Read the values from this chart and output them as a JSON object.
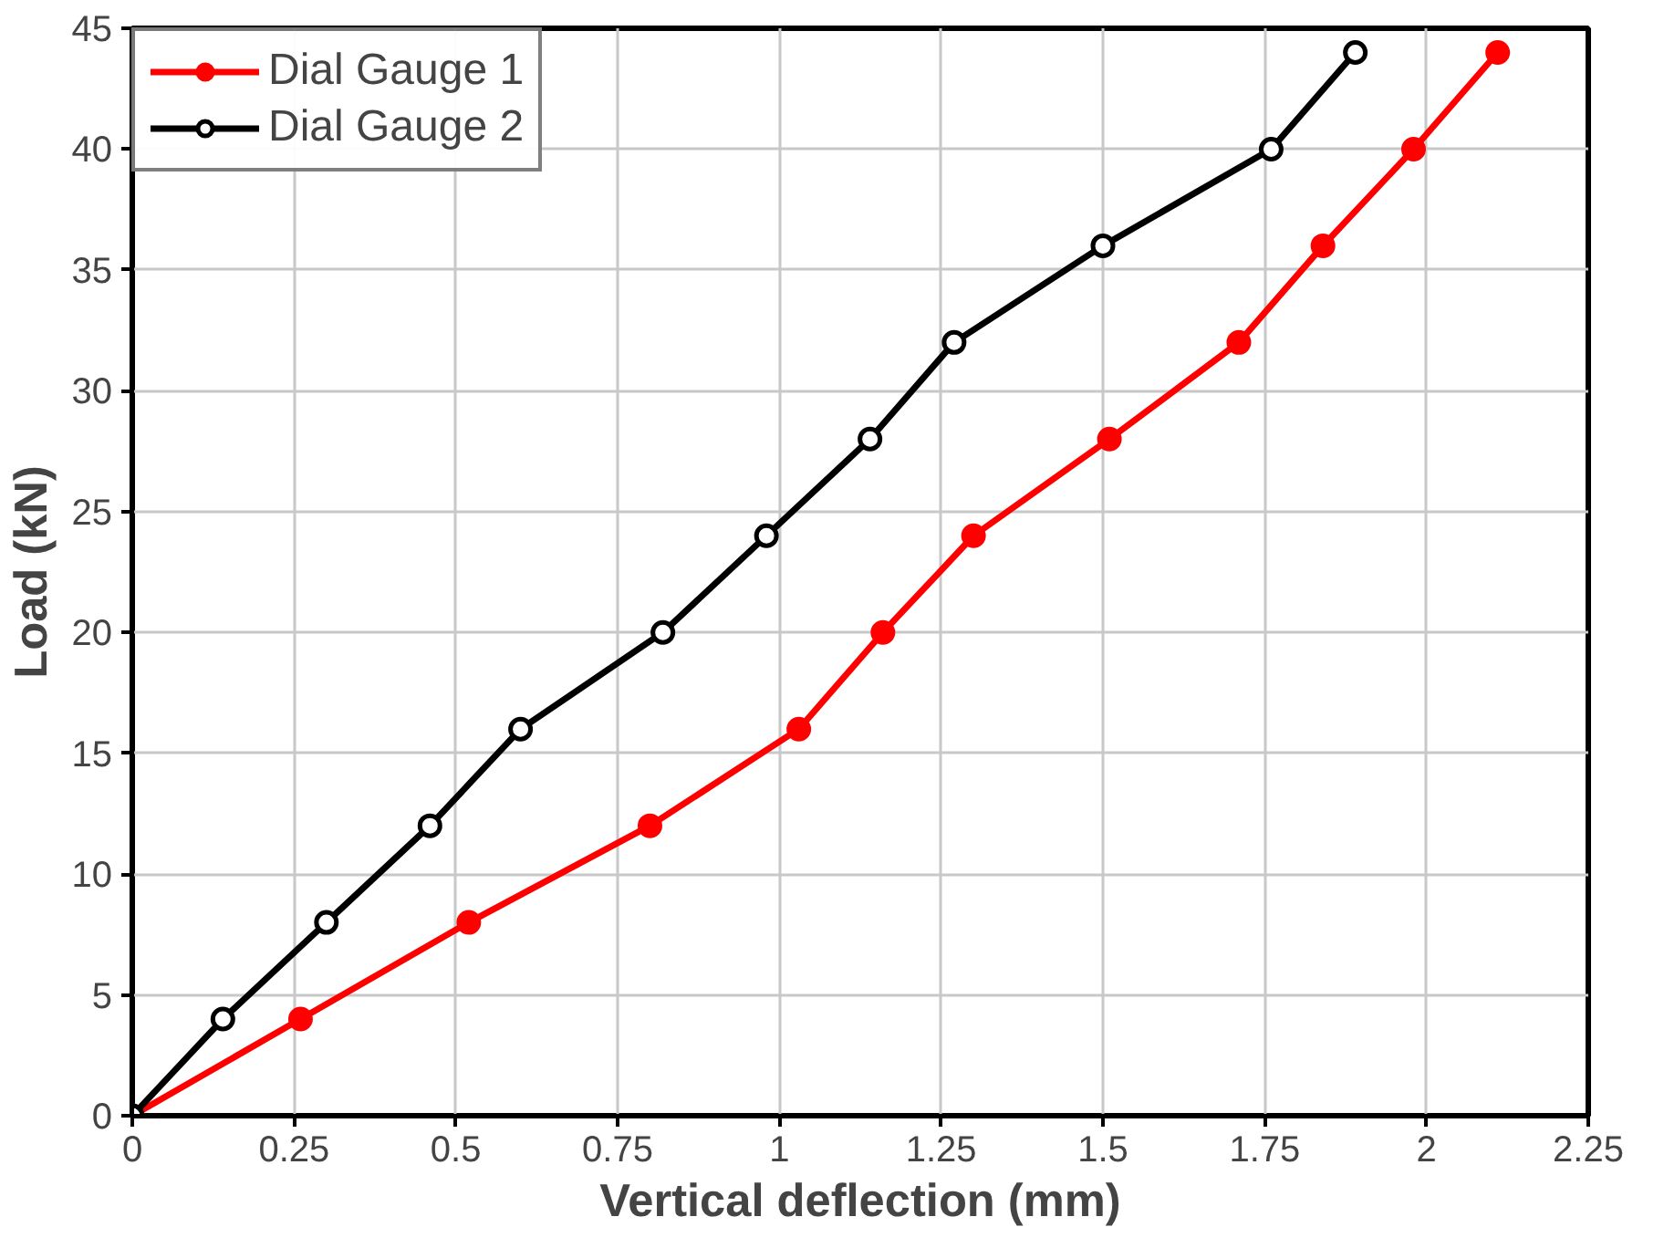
{
  "chart_data": {
    "type": "line",
    "xlabel": "Vertical deflection (mm)",
    "ylabel": "Load (kN)",
    "xlim": [
      0,
      2.25
    ],
    "ylim": [
      0,
      45
    ],
    "xticks": [
      0,
      0.25,
      0.5,
      0.75,
      1,
      1.25,
      1.5,
      1.75,
      2,
      2.25
    ],
    "yticks": [
      0,
      5,
      10,
      15,
      20,
      25,
      30,
      35,
      40,
      45
    ],
    "grid": true,
    "legend": "top left",
    "marker": "circle",
    "line_style": "solid",
    "series": [
      {
        "name": "Dial Gauge 1",
        "color": "#ff0000",
        "x": [
          0,
          0.26,
          0.52,
          0.8,
          1.03,
          1.16,
          1.3,
          1.51,
          1.71,
          1.84,
          1.98,
          2.11
        ],
        "values": [
          0,
          4,
          8,
          12,
          16,
          20,
          24,
          28,
          32,
          36,
          40,
          44
        ]
      },
      {
        "name": "Dial Gauge 2",
        "color": "#000000",
        "x": [
          0,
          0.14,
          0.3,
          0.46,
          0.6,
          0.82,
          0.98,
          1.14,
          1.27,
          1.5,
          1.76,
          1.89
        ],
        "values": [
          0,
          4,
          8,
          12,
          16,
          20,
          24,
          28,
          32,
          36,
          40,
          44
        ]
      }
    ]
  }
}
